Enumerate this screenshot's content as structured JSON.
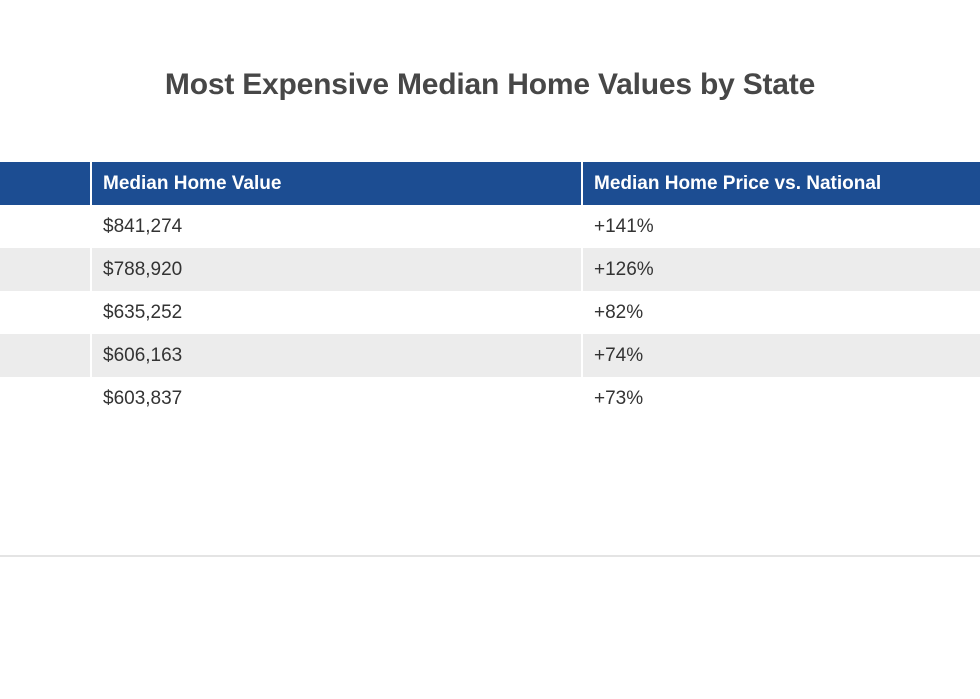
{
  "chart_data": {
    "type": "table",
    "title": "Most Expensive Median Home Values by State",
    "columns": [
      "",
      "Median Home Value",
      "Median Home Price vs. National"
    ],
    "rows": [
      {
        "state": "",
        "value": "$841,274",
        "vs_national": "+141%"
      },
      {
        "state": "",
        "value": "$788,920",
        "vs_national": "+126%"
      },
      {
        "state": "",
        "value": "$635,252",
        "vs_national": "+82%"
      },
      {
        "state": "",
        "value": "$606,163",
        "vs_national": "+74%"
      },
      {
        "state": "",
        "value": "$603,837",
        "vs_national": "+73%"
      }
    ],
    "colors": {
      "header_bg": "#1c4d92",
      "header_text": "#ffffff",
      "alt_row_bg": "#ececec",
      "title_text": "#474747"
    }
  }
}
